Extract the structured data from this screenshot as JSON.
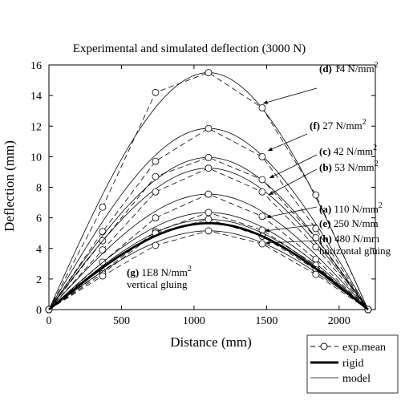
{
  "chart_data": {
    "type": "line",
    "title": "Experimental and simulated deflection (3000 N)",
    "xlabel": "Distance (mm)",
    "ylabel": "Deflection (mm)",
    "xlim": [
      0,
      2250
    ],
    "ylim": [
      0,
      16
    ],
    "xticks": [
      0,
      500,
      1000,
      1500,
      2000
    ],
    "yticks": [
      0,
      2,
      4,
      6,
      8,
      10,
      12,
      14,
      16
    ],
    "grid": false,
    "legend_position": "bottom-right",
    "legend": [
      {
        "label": "exp.mean",
        "style": "dashed-circle"
      },
      {
        "label": "rigid",
        "style": "thick-solid"
      },
      {
        "label": "model",
        "style": "thin-solid"
      }
    ],
    "series": [
      {
        "name": "(d) 14 N/mm2",
        "peak": 15.5,
        "exp_mean": [
          [
            0,
            0
          ],
          [
            370,
            6.7
          ],
          [
            735,
            14.2
          ],
          [
            1100,
            15.5
          ],
          [
            1470,
            13.2
          ],
          [
            1840,
            7.5
          ],
          [
            2200,
            0
          ]
        ]
      },
      {
        "name": "(f) 27 N/mm2",
        "peak": 11.85,
        "exp_mean": [
          [
            0,
            0
          ],
          [
            370,
            5.1
          ],
          [
            735,
            9.7
          ],
          [
            1100,
            11.85
          ],
          [
            1470,
            10.0
          ],
          [
            1840,
            5.3
          ],
          [
            2200,
            0
          ]
        ]
      },
      {
        "name": "(c) 42 N/mm2",
        "peak": 9.95,
        "exp_mean": [
          [
            0,
            0
          ],
          [
            370,
            4.5
          ],
          [
            735,
            8.7
          ],
          [
            1100,
            9.95
          ],
          [
            1470,
            8.5
          ],
          [
            1840,
            4.7
          ],
          [
            2200,
            0
          ]
        ]
      },
      {
        "name": "(b) 53 N/mm2",
        "peak": 9.25,
        "exp_mean": [
          [
            0,
            0
          ],
          [
            370,
            3.9
          ],
          [
            735,
            7.7
          ],
          [
            1100,
            9.25
          ],
          [
            1470,
            7.7
          ],
          [
            1840,
            4.1
          ],
          [
            2200,
            0
          ]
        ]
      },
      {
        "name": "(a) 110 N/mm2",
        "peak": 7.55,
        "exp_mean": [
          [
            0,
            0
          ],
          [
            370,
            3.1
          ],
          [
            735,
            6.0
          ],
          [
            1100,
            7.55
          ],
          [
            1470,
            6.1
          ],
          [
            1840,
            3.3
          ],
          [
            2200,
            0
          ]
        ]
      },
      {
        "name": "(e) 250 N/mm",
        "peak": 6.35,
        "exp_mean": [
          [
            0,
            0
          ],
          [
            370,
            2.5
          ],
          [
            735,
            5.1
          ],
          [
            1100,
            6.35
          ],
          [
            1470,
            5.2
          ],
          [
            1840,
            2.9
          ],
          [
            2200,
            0
          ]
        ]
      },
      {
        "name": "(h) 480 N/mm horizontal gluing",
        "peak": 5.9,
        "exp_mean": [
          [
            0,
            0
          ],
          [
            370,
            2.35
          ],
          [
            735,
            5.0
          ],
          [
            1100,
            5.9
          ],
          [
            1470,
            4.8
          ],
          [
            1840,
            2.6
          ],
          [
            2200,
            0
          ]
        ]
      },
      {
        "name": "(g) 1E8 N/mm2 vertical gluing",
        "peak": 5.15,
        "exp_mean": [
          [
            0,
            0
          ],
          [
            370,
            2.2
          ],
          [
            735,
            4.2
          ],
          [
            1100,
            5.15
          ],
          [
            1470,
            4.3
          ],
          [
            1840,
            2.3
          ],
          [
            2200,
            0
          ]
        ]
      }
    ],
    "rigid": {
      "peak": 5.65
    },
    "annotations": [
      {
        "key": "(d)",
        "text": "14 N/mm",
        "sup": "2"
      },
      {
        "key": "(f)",
        "text": "27 N/mm",
        "sup": "2"
      },
      {
        "key": "(c)",
        "text": "42 N/mm",
        "sup": "2"
      },
      {
        "key": "(b)",
        "text": "53 N/mm",
        "sup": "2"
      },
      {
        "key": "(a)",
        "text": "110 N/mm",
        "sup": "2"
      },
      {
        "key": "(e)",
        "text": "250 N/mm",
        "sup": ""
      },
      {
        "key": "(h)",
        "text": "480 N/mm",
        "sup": "",
        "line2": "horizontal gluing"
      },
      {
        "key": "(g)",
        "text": "1E8 N/mm",
        "sup": "2",
        "line2": "vertical gluing"
      }
    ]
  }
}
